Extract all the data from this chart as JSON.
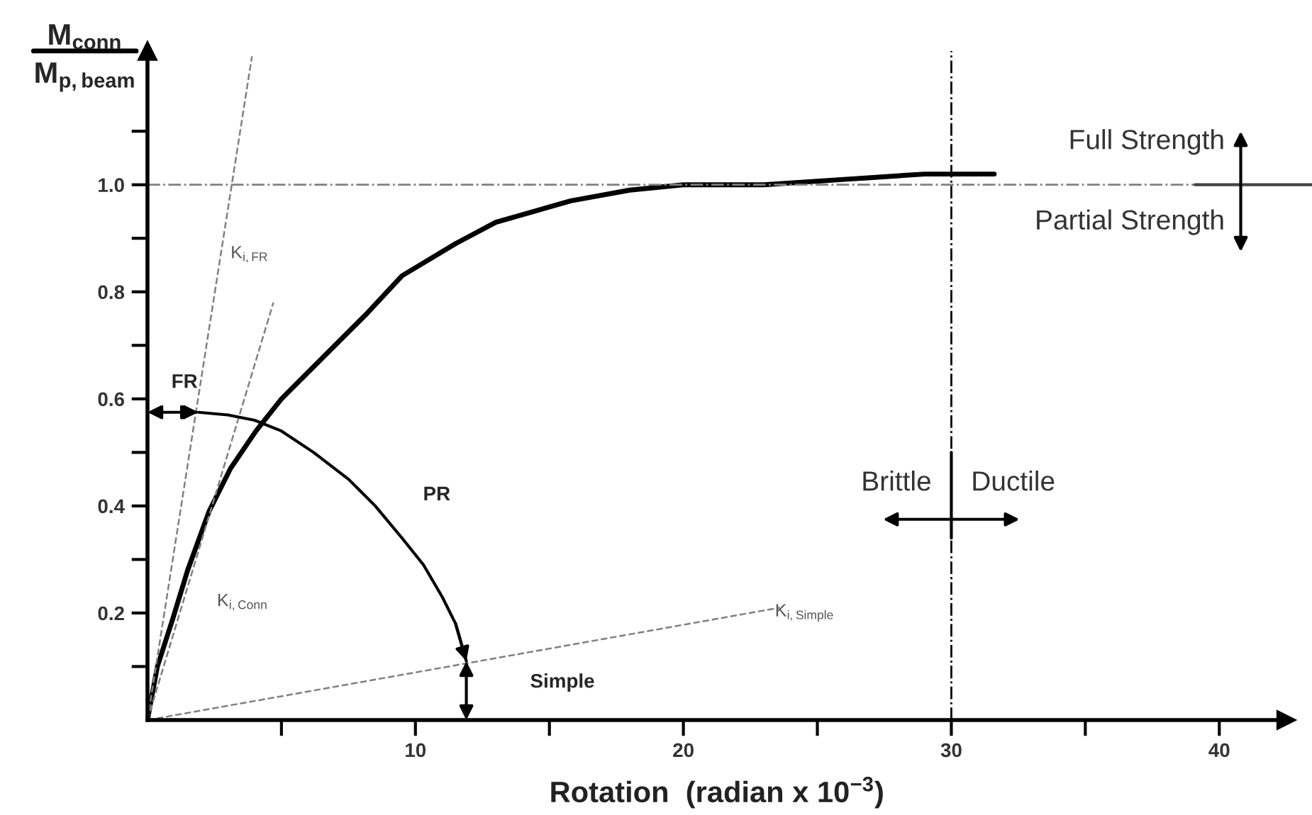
{
  "chart_data": {
    "type": "line",
    "xlabel": "Rotation  (radian x 10$^{−3}$)",
    "ylabel": "M$_{conn}$\nM$_{p,beam}$",
    "xlim": [
      0,
      42.5
    ],
    "ylim": [
      0,
      1.25
    ],
    "xticks": [
      {
        "value": 5,
        "label": null
      },
      10,
      {
        "value": 15,
        "label": null
      },
      20,
      {
        "value": 25,
        "label": null
      },
      30,
      {
        "value": 35,
        "label": null
      },
      40
    ],
    "yticks": [
      {
        "value": 0.1,
        "label": null
      },
      0.2,
      {
        "value": 0.3,
        "label": null
      },
      0.4,
      {
        "value": 0.5,
        "label": null
      },
      0.6,
      {
        "value": 0.7,
        "label": null
      },
      0.8,
      {
        "value": 0.9,
        "label": null
      },
      {
        "value": 1.0,
        "label": "1.0"
      },
      {
        "value": 1.1,
        "label": null
      }
    ],
    "marker": "none",
    "series": [
      {
        "color": "#000000",
        "line_style": "solid",
        "x": [
          0,
          0.37,
          0.95,
          1.5,
          2.3,
          3.1,
          4.05,
          5,
          6.2,
          7,
          8.2,
          9.5,
          11.5,
          13,
          15.8,
          18,
          20,
          23,
          26,
          29,
          31.6
        ],
        "values": [
          0,
          0.1,
          0.19,
          0.28,
          0.39,
          0.47,
          0.54,
          0.6,
          0.66,
          0.7,
          0.76,
          0.83,
          0.89,
          0.93,
          0.97,
          0.99,
          1.0,
          1.0,
          1.01,
          1.02,
          1.02
        ]
      },
      {
        "color": "#808080",
        "line_style": "dashed",
        "x": [
          0,
          3.9
        ],
        "values": [
          0,
          1.24
        ]
      },
      {
        "color": "#808080",
        "line_style": "dashed",
        "x": [
          0,
          4.7
        ],
        "values": [
          0,
          0.78
        ]
      },
      {
        "color": "#808080",
        "line_style": "dashed",
        "x": [
          0,
          23.6
        ],
        "values": [
          0,
          0.21
        ]
      },
      {
        "color": "#000000",
        "line_style": "solid",
        "x": [
          1.9,
          3,
          4,
          5,
          6.2,
          7.5,
          8.5,
          9.5,
          10.3,
          11,
          11.5,
          11.9
        ],
        "values": [
          0.575,
          0.57,
          0.56,
          0.54,
          0.5,
          0.45,
          0.4,
          0.34,
          0.29,
          0.23,
          0.18,
          0.11
        ]
      }
    ],
    "ref_lines": [
      {
        "axis": "y",
        "value": 1.0,
        "color": "#808080",
        "line_style": "dashdot"
      },
      {
        "axis": "x",
        "value": 30,
        "color": "#000000",
        "line_style": "dashdot"
      }
    ],
    "annotations": [
      "FR",
      "PR",
      "Simple",
      "K$_{i,FR}$",
      "K$_{i,Conn}$",
      "K$_{i,Simple}$",
      "Full Strength",
      "Partial Strength",
      {
        "text": "Brittle",
        "x": 30,
        "y": 0.42
      },
      {
        "text": "Ductile",
        "x": 30,
        "y": 0.42
      }
    ]
  }
}
